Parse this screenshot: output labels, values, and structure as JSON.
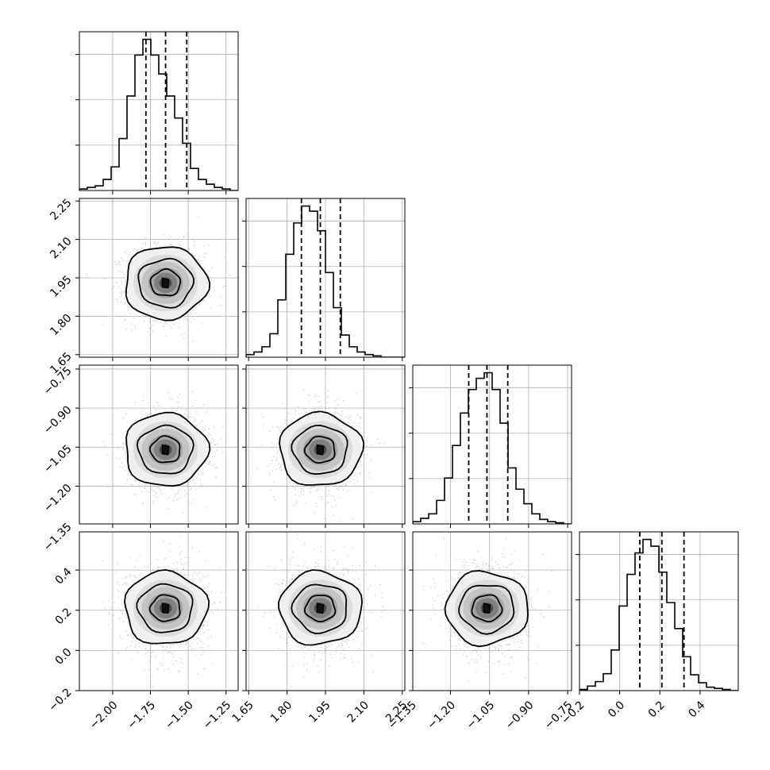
{
  "chart_data": {
    "type": "corner",
    "title": "",
    "grid": true,
    "style": {
      "hist_color": "#000000",
      "contour_color": "#000000",
      "point_color": "#9a9a9a",
      "grid_color": "#b0b0b0"
    },
    "parameters": [
      {
        "index": 0,
        "range": [
          -2.22,
          -1.17
        ],
        "mean": -1.65,
        "sd": 0.13,
        "quantiles": [
          -1.78,
          -1.65,
          -1.51
        ],
        "ticks": [
          {
            "v": -2.0,
            "label": "−2.00"
          },
          {
            "v": -1.75,
            "label": "−1.75"
          },
          {
            "v": -1.5,
            "label": "−1.50"
          },
          {
            "v": -1.25,
            "label": "−1.25"
          }
        ]
      },
      {
        "index": 1,
        "range": [
          1.64,
          2.26
        ],
        "mean": 1.93,
        "sd": 0.075,
        "quantiles": [
          1.856,
          1.93,
          2.008
        ],
        "ticks": [
          {
            "v": 1.65,
            "label": "1.65"
          },
          {
            "v": 1.8,
            "label": "1.80"
          },
          {
            "v": 1.95,
            "label": "1.95"
          },
          {
            "v": 2.1,
            "label": "2.10"
          },
          {
            "v": 2.25,
            "label": "2.25"
          }
        ]
      },
      {
        "index": 2,
        "range": [
          -1.345,
          -0.735
        ],
        "mean": -1.06,
        "sd": 0.077,
        "quantiles": [
          -1.13,
          -1.06,
          -0.98
        ],
        "ticks": [
          {
            "v": -1.35,
            "label": "−1.35"
          },
          {
            "v": -1.2,
            "label": "−1.20"
          },
          {
            "v": -1.05,
            "label": "−1.05"
          },
          {
            "v": -0.9,
            "label": "−0.90"
          },
          {
            "v": -0.75,
            "label": "−0.75"
          }
        ]
      },
      {
        "index": 3,
        "range": [
          -0.2,
          0.59
        ],
        "mean": 0.21,
        "sd": 0.11,
        "quantiles": [
          0.1,
          0.21,
          0.32
        ],
        "ticks": [
          {
            "v": -0.2,
            "label": "−0.2"
          },
          {
            "v": 0.0,
            "label": "0.0"
          },
          {
            "v": 0.2,
            "label": "0.2"
          },
          {
            "v": 0.4,
            "label": "0.4"
          }
        ]
      }
    ],
    "histograms": [
      {
        "param": 0,
        "bins": 20,
        "counts": [
          1,
          2,
          3,
          7,
          15,
          33,
          60,
          86,
          96,
          86,
          74,
          60,
          46,
          30,
          14,
          7,
          4,
          2,
          1,
          0
        ]
      },
      {
        "param": 1,
        "bins": 20,
        "counts": [
          2,
          4,
          8,
          18,
          44,
          79,
          103,
          116,
          112,
          97,
          65,
          38,
          17,
          8,
          4,
          2,
          1,
          0,
          0,
          0
        ]
      },
      {
        "param": 2,
        "bins": 20,
        "counts": [
          2,
          5,
          9,
          21,
          41,
          70,
          99,
          120,
          130,
          135,
          120,
          90,
          50,
          31,
          18,
          9,
          4,
          2,
          1,
          0
        ]
      },
      {
        "param": 3,
        "bins": 20,
        "counts": [
          1,
          4,
          8,
          15,
          36,
          75,
          103,
          122,
          134,
          128,
          105,
          78,
          55,
          30,
          14,
          7,
          3,
          2,
          1,
          0
        ]
      }
    ]
  }
}
